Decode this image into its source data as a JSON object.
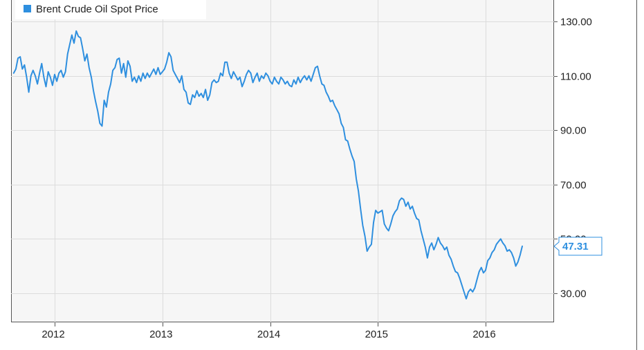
{
  "chart_data": {
    "type": "line",
    "title": "",
    "xlabel": "",
    "ylabel": "",
    "grid": true,
    "legend_position": "top-left",
    "x_range": [
      2011.62,
      2016.6
    ],
    "ylim": [
      20,
      140
    ],
    "x_ticks": [
      {
        "value": 2012,
        "label": "2012"
      },
      {
        "value": 2013,
        "label": "2013"
      },
      {
        "value": 2014,
        "label": "2014"
      },
      {
        "value": 2015,
        "label": "2015"
      },
      {
        "value": 2016,
        "label": "2016"
      }
    ],
    "y_ticks": [
      {
        "value": 30,
        "label": "30.00"
      },
      {
        "value": 50,
        "label": "50.00"
      },
      {
        "value": 70,
        "label": "70.00"
      },
      {
        "value": 90,
        "label": "90.00"
      },
      {
        "value": 110,
        "label": "110.00"
      },
      {
        "value": 130,
        "label": "130.00"
      }
    ],
    "series": [
      {
        "name": "Brent Crude Oil Spot Price",
        "color": "#2e8fdf",
        "last_value_label": "47.31",
        "points": [
          [
            2011.62,
            111.0
          ],
          [
            2011.64,
            112.5
          ],
          [
            2011.66,
            116.5
          ],
          [
            2011.68,
            117.0
          ],
          [
            2011.7,
            112.5
          ],
          [
            2011.72,
            114.0
          ],
          [
            2011.74,
            109.5
          ],
          [
            2011.76,
            104.0
          ],
          [
            2011.78,
            110.0
          ],
          [
            2011.8,
            112.0
          ],
          [
            2011.82,
            110.0
          ],
          [
            2011.84,
            107.0
          ],
          [
            2011.86,
            111.0
          ],
          [
            2011.88,
            114.5
          ],
          [
            2011.9,
            109.5
          ],
          [
            2011.92,
            106.0
          ],
          [
            2011.94,
            111.5
          ],
          [
            2011.96,
            109.5
          ],
          [
            2011.98,
            106.5
          ],
          [
            2012.0,
            110.5
          ],
          [
            2012.02,
            108.0
          ],
          [
            2012.04,
            111.0
          ],
          [
            2012.06,
            112.0
          ],
          [
            2012.08,
            109.5
          ],
          [
            2012.1,
            111.5
          ],
          [
            2012.12,
            118.0
          ],
          [
            2012.14,
            121.5
          ],
          [
            2012.16,
            125.0
          ],
          [
            2012.18,
            122.0
          ],
          [
            2012.2,
            126.5
          ],
          [
            2012.22,
            124.5
          ],
          [
            2012.24,
            124.0
          ],
          [
            2012.26,
            120.0
          ],
          [
            2012.28,
            115.5
          ],
          [
            2012.3,
            118.0
          ],
          [
            2012.32,
            113.0
          ],
          [
            2012.34,
            109.5
          ],
          [
            2012.36,
            104.5
          ],
          [
            2012.38,
            100.5
          ],
          [
            2012.4,
            97.0
          ],
          [
            2012.42,
            92.5
          ],
          [
            2012.44,
            91.5
          ],
          [
            2012.46,
            101.0
          ],
          [
            2012.48,
            98.5
          ],
          [
            2012.5,
            104.0
          ],
          [
            2012.52,
            107.0
          ],
          [
            2012.54,
            112.0
          ],
          [
            2012.56,
            113.0
          ],
          [
            2012.58,
            116.0
          ],
          [
            2012.6,
            116.5
          ],
          [
            2012.62,
            111.0
          ],
          [
            2012.64,
            114.5
          ],
          [
            2012.66,
            109.5
          ],
          [
            2012.68,
            115.5
          ],
          [
            2012.7,
            113.5
          ],
          [
            2012.72,
            108.0
          ],
          [
            2012.74,
            109.5
          ],
          [
            2012.76,
            107.5
          ],
          [
            2012.78,
            110.0
          ],
          [
            2012.8,
            108.0
          ],
          [
            2012.82,
            111.0
          ],
          [
            2012.84,
            109.0
          ],
          [
            2012.86,
            111.0
          ],
          [
            2012.88,
            109.5
          ],
          [
            2012.9,
            111.0
          ],
          [
            2012.92,
            112.5
          ],
          [
            2012.94,
            110.5
          ],
          [
            2012.96,
            113.0
          ],
          [
            2012.98,
            110.5
          ],
          [
            2013.0,
            111.5
          ],
          [
            2013.02,
            112.5
          ],
          [
            2013.04,
            115.0
          ],
          [
            2013.06,
            118.5
          ],
          [
            2013.08,
            117.0
          ],
          [
            2013.1,
            112.0
          ],
          [
            2013.12,
            110.5
          ],
          [
            2013.14,
            109.0
          ],
          [
            2013.16,
            107.5
          ],
          [
            2013.18,
            110.0
          ],
          [
            2013.2,
            105.0
          ],
          [
            2013.22,
            104.0
          ],
          [
            2013.24,
            100.0
          ],
          [
            2013.26,
            99.5
          ],
          [
            2013.28,
            103.0
          ],
          [
            2013.3,
            102.0
          ],
          [
            2013.32,
            104.5
          ],
          [
            2013.34,
            102.5
          ],
          [
            2013.36,
            103.5
          ],
          [
            2013.38,
            102.0
          ],
          [
            2013.4,
            105.0
          ],
          [
            2013.42,
            101.0
          ],
          [
            2013.44,
            103.0
          ],
          [
            2013.46,
            107.5
          ],
          [
            2013.48,
            108.5
          ],
          [
            2013.5,
            107.5
          ],
          [
            2013.52,
            108.0
          ],
          [
            2013.54,
            111.0
          ],
          [
            2013.56,
            110.0
          ],
          [
            2013.58,
            115.0
          ],
          [
            2013.6,
            115.0
          ],
          [
            2013.62,
            111.0
          ],
          [
            2013.64,
            109.0
          ],
          [
            2013.66,
            111.5
          ],
          [
            2013.68,
            110.0
          ],
          [
            2013.7,
            108.5
          ],
          [
            2013.72,
            109.5
          ],
          [
            2013.74,
            106.0
          ],
          [
            2013.76,
            108.0
          ],
          [
            2013.78,
            110.5
          ],
          [
            2013.8,
            112.0
          ],
          [
            2013.82,
            111.0
          ],
          [
            2013.84,
            107.5
          ],
          [
            2013.86,
            109.5
          ],
          [
            2013.88,
            111.0
          ],
          [
            2013.9,
            108.0
          ],
          [
            2013.92,
            110.0
          ],
          [
            2013.94,
            109.0
          ],
          [
            2013.96,
            111.0
          ],
          [
            2013.98,
            110.0
          ],
          [
            2014.0,
            108.0
          ],
          [
            2014.02,
            107.0
          ],
          [
            2014.04,
            109.5
          ],
          [
            2014.06,
            108.0
          ],
          [
            2014.08,
            107.0
          ],
          [
            2014.1,
            109.5
          ],
          [
            2014.12,
            108.5
          ],
          [
            2014.14,
            107.0
          ],
          [
            2014.16,
            108.0
          ],
          [
            2014.18,
            106.5
          ],
          [
            2014.2,
            106.0
          ],
          [
            2014.22,
            108.5
          ],
          [
            2014.24,
            107.0
          ],
          [
            2014.26,
            109.5
          ],
          [
            2014.28,
            107.5
          ],
          [
            2014.3,
            109.0
          ],
          [
            2014.32,
            110.0
          ],
          [
            2014.34,
            108.5
          ],
          [
            2014.36,
            110.0
          ],
          [
            2014.38,
            108.0
          ],
          [
            2014.4,
            110.5
          ],
          [
            2014.42,
            113.0
          ],
          [
            2014.44,
            113.5
          ],
          [
            2014.46,
            110.0
          ],
          [
            2014.48,
            107.0
          ],
          [
            2014.5,
            106.5
          ],
          [
            2014.52,
            104.0
          ],
          [
            2014.54,
            102.5
          ],
          [
            2014.56,
            100.5
          ],
          [
            2014.58,
            101.0
          ],
          [
            2014.6,
            99.0
          ],
          [
            2014.62,
            97.5
          ],
          [
            2014.64,
            96.0
          ],
          [
            2014.66,
            92.5
          ],
          [
            2014.68,
            91.0
          ],
          [
            2014.7,
            86.5
          ],
          [
            2014.72,
            86.0
          ],
          [
            2014.74,
            83.0
          ],
          [
            2014.76,
            80.5
          ],
          [
            2014.78,
            78.5
          ],
          [
            2014.8,
            72.0
          ],
          [
            2014.82,
            67.5
          ],
          [
            2014.84,
            61.0
          ],
          [
            2014.86,
            55.0
          ],
          [
            2014.88,
            51.0
          ],
          [
            2014.9,
            45.5
          ],
          [
            2014.92,
            47.0
          ],
          [
            2014.94,
            48.0
          ],
          [
            2014.96,
            56.0
          ],
          [
            2014.98,
            60.5
          ],
          [
            2015.0,
            59.5
          ],
          [
            2015.02,
            60.0
          ],
          [
            2015.04,
            60.5
          ],
          [
            2015.06,
            55.5
          ],
          [
            2015.08,
            54.0
          ],
          [
            2015.1,
            53.0
          ],
          [
            2015.12,
            55.5
          ],
          [
            2015.14,
            58.5
          ],
          [
            2015.16,
            60.0
          ],
          [
            2015.18,
            61.0
          ],
          [
            2015.2,
            64.0
          ],
          [
            2015.22,
            65.0
          ],
          [
            2015.24,
            64.5
          ],
          [
            2015.26,
            62.0
          ],
          [
            2015.28,
            63.5
          ],
          [
            2015.3,
            61.0
          ],
          [
            2015.32,
            62.0
          ],
          [
            2015.34,
            59.5
          ],
          [
            2015.36,
            57.5
          ],
          [
            2015.38,
            57.0
          ],
          [
            2015.4,
            53.0
          ],
          [
            2015.42,
            50.0
          ],
          [
            2015.44,
            47.0
          ],
          [
            2015.46,
            43.0
          ],
          [
            2015.48,
            47.0
          ],
          [
            2015.5,
            48.5
          ],
          [
            2015.52,
            46.0
          ],
          [
            2015.54,
            48.0
          ],
          [
            2015.56,
            50.5
          ],
          [
            2015.58,
            48.5
          ],
          [
            2015.6,
            47.5
          ],
          [
            2015.62,
            46.0
          ],
          [
            2015.64,
            47.0
          ],
          [
            2015.66,
            44.0
          ],
          [
            2015.68,
            42.5
          ],
          [
            2015.7,
            40.0
          ],
          [
            2015.72,
            38.0
          ],
          [
            2015.74,
            37.5
          ],
          [
            2015.76,
            35.5
          ],
          [
            2015.78,
            33.0
          ],
          [
            2015.8,
            30.5
          ],
          [
            2015.82,
            28.0
          ],
          [
            2015.84,
            30.5
          ],
          [
            2015.86,
            31.5
          ],
          [
            2015.88,
            30.5
          ],
          [
            2015.9,
            32.0
          ],
          [
            2015.92,
            35.0
          ],
          [
            2015.94,
            38.0
          ],
          [
            2015.96,
            39.5
          ],
          [
            2015.98,
            37.5
          ],
          [
            2016.0,
            38.5
          ],
          [
            2016.02,
            42.0
          ],
          [
            2016.04,
            43.0
          ],
          [
            2016.06,
            45.0
          ],
          [
            2016.08,
            46.0
          ],
          [
            2016.1,
            48.0
          ],
          [
            2016.12,
            49.0
          ],
          [
            2016.14,
            50.0
          ],
          [
            2016.16,
            48.5
          ],
          [
            2016.18,
            47.5
          ],
          [
            2016.2,
            45.5
          ],
          [
            2016.22,
            46.0
          ],
          [
            2016.24,
            45.0
          ],
          [
            2016.26,
            43.0
          ],
          [
            2016.28,
            40.0
          ],
          [
            2016.3,
            41.5
          ],
          [
            2016.32,
            44.0
          ],
          [
            2016.34,
            47.31
          ]
        ]
      }
    ]
  }
}
